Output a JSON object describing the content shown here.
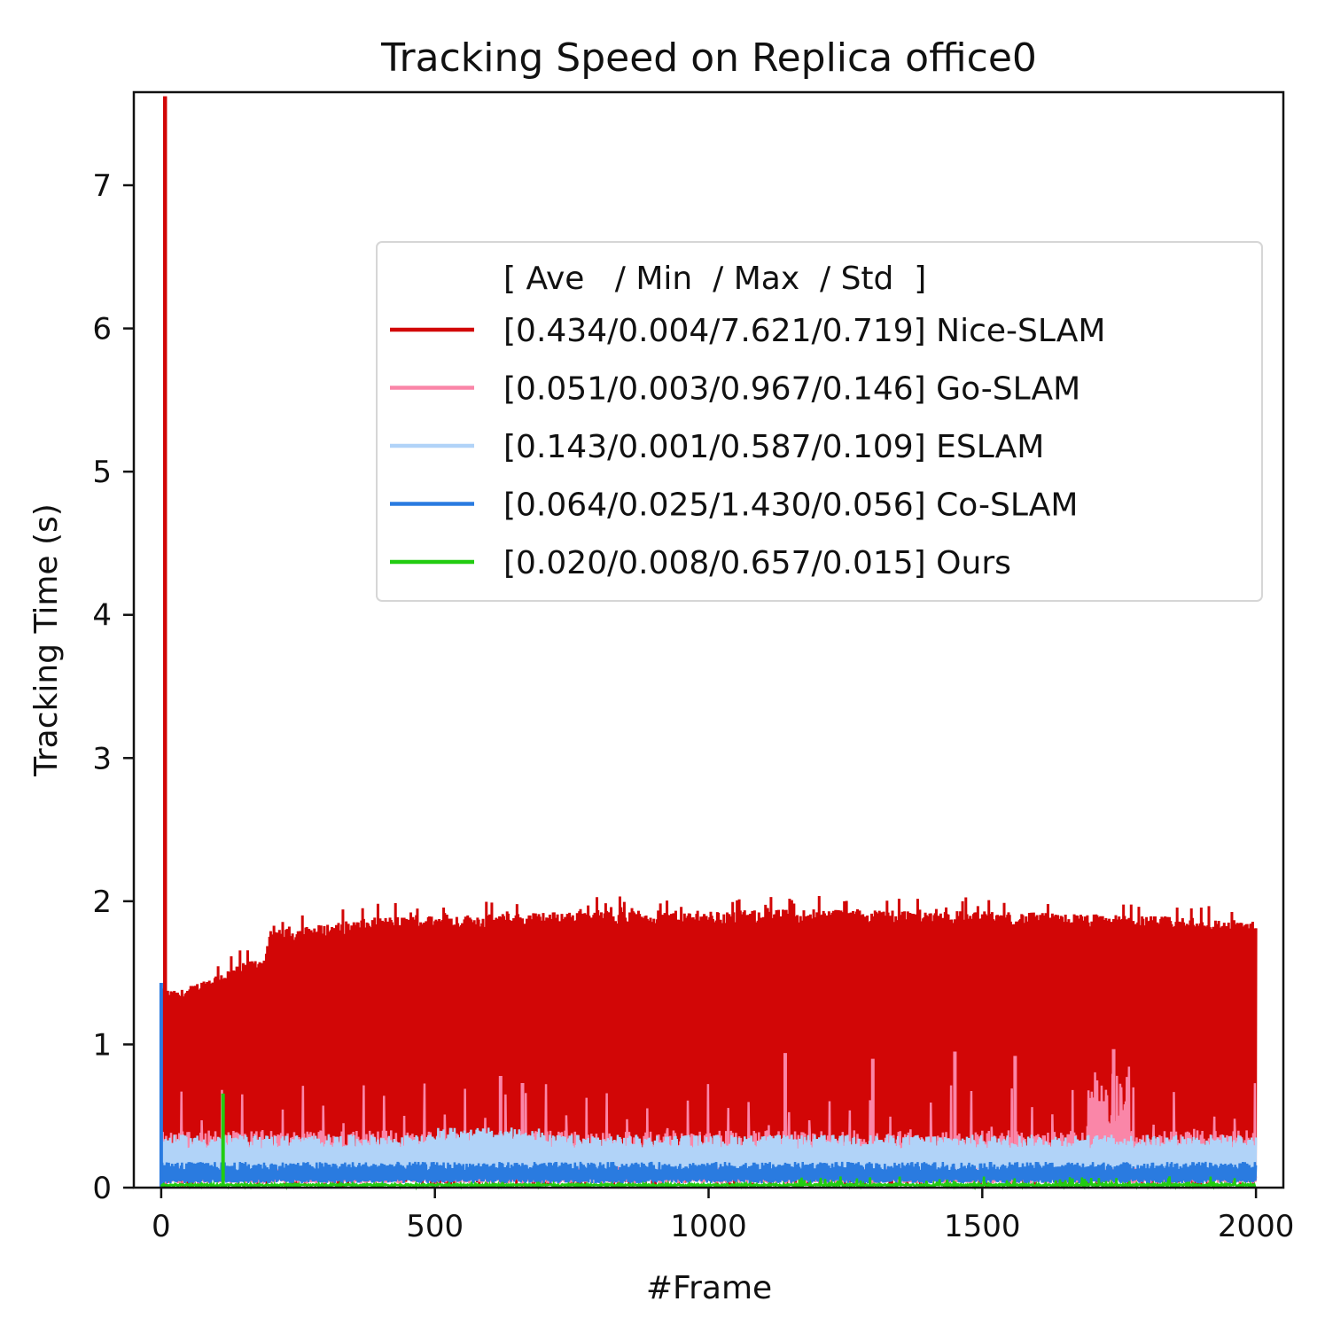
{
  "chart_data": {
    "type": "line",
    "title": "Tracking Speed on Replica office0",
    "xlabel": "#Frame",
    "ylabel": "Tracking Time (s)",
    "xlim": [
      -50,
      2050
    ],
    "ylim": [
      0,
      7.65
    ],
    "xticks": [
      0,
      500,
      1000,
      1500,
      2000
    ],
    "yticks": [
      0,
      1,
      2,
      3,
      4,
      5,
      6,
      7
    ],
    "grid": false,
    "legend_position": "upper-right",
    "legend_header": "[ Ave   / Min  / Max  / Std  ]",
    "series": [
      {
        "name": "Nice-SLAM",
        "stats_label": "[0.434/0.004/7.621/0.719]",
        "color": "#d20606",
        "ave": 0.434,
        "min": 0.004,
        "max": 7.621,
        "std": 0.719,
        "peaks": [
          [
            7,
            7.621
          ]
        ],
        "envelope": [
          [
            0,
            1.42
          ],
          [
            30,
            1.4
          ],
          [
            60,
            1.45
          ],
          [
            100,
            1.52
          ],
          [
            150,
            1.6
          ],
          [
            190,
            1.65
          ],
          [
            200,
            1.83
          ],
          [
            300,
            1.88
          ],
          [
            400,
            1.93
          ],
          [
            600,
            1.95
          ],
          [
            800,
            1.98
          ],
          [
            1000,
            1.97
          ],
          [
            1200,
            1.99
          ],
          [
            1400,
            1.98
          ],
          [
            1600,
            1.96
          ],
          [
            1800,
            1.94
          ],
          [
            2000,
            1.9
          ]
        ],
        "baseline": [
          0,
          0.3
        ]
      },
      {
        "name": "Go-SLAM",
        "stats_label": "[0.051/0.003/0.967/0.146]",
        "color": "#fa86a8",
        "ave": 0.051,
        "min": 0.003,
        "max": 0.967,
        "std": 0.146,
        "peaks": [
          [
            620,
            0.78
          ],
          [
            660,
            0.73
          ],
          [
            1140,
            0.94
          ],
          [
            1300,
            0.9
          ],
          [
            1450,
            0.95
          ],
          [
            1560,
            0.92
          ],
          [
            1740,
            0.967
          ]
        ]
      },
      {
        "name": "ESLAM",
        "stats_label": "[0.143/0.001/0.587/0.109]",
        "color": "#b1d3f8",
        "ave": 0.143,
        "min": 0.001,
        "max": 0.587,
        "std": 0.109
      },
      {
        "name": "Co-SLAM",
        "stats_label": "[0.064/0.025/1.430/0.056]",
        "color": "#2a7be0",
        "ave": 0.064,
        "min": 0.025,
        "max": 1.43,
        "std": 0.056,
        "peaks": [
          [
            0,
            1.43
          ]
        ]
      },
      {
        "name": "Ours",
        "stats_label": "[0.020/0.008/0.657/0.015]",
        "color": "#22cc11",
        "ave": 0.02,
        "min": 0.008,
        "max": 0.657,
        "std": 0.015,
        "peaks": [
          [
            113,
            0.657
          ]
        ]
      }
    ]
  }
}
